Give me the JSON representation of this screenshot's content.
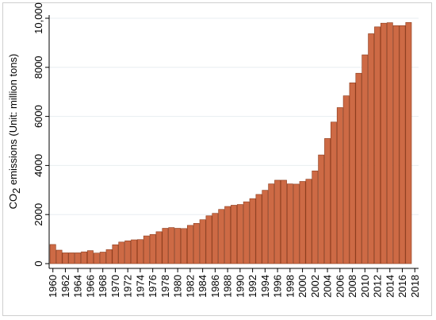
{
  "chart_data": {
    "type": "bar",
    "title": "",
    "ylabel_parts": {
      "prefix": "CO",
      "subscript": "2",
      "suffix": " emissions (Unit: million tons)"
    },
    "xlabel": "",
    "ylim": [
      0,
      10000
    ],
    "yticks": [
      0,
      2000,
      4000,
      6000,
      8000,
      10000
    ],
    "ytick_labels": [
      "0",
      "2000",
      "4000",
      "6000",
      "8000",
      "10,000"
    ],
    "xlim": [
      1959.4,
      2018.6
    ],
    "xticks": [
      1960,
      1962,
      1964,
      1966,
      1968,
      1970,
      1972,
      1974,
      1976,
      1978,
      1980,
      1982,
      1984,
      1986,
      1988,
      1990,
      1992,
      1994,
      1996,
      1998,
      2000,
      2002,
      2004,
      2006,
      2008,
      2010,
      2012,
      2014,
      2016,
      2018
    ],
    "xtick_labels": [
      "1960",
      "1962",
      "1964",
      "1966",
      "1968",
      "1970",
      "1972",
      "1974",
      "1976",
      "1978",
      "1980",
      "1982",
      "1984",
      "1986",
      "1988",
      "1990",
      "1992",
      "1994",
      "1996",
      "1998",
      "2000",
      "2002",
      "2004",
      "2006",
      "2008",
      "2010",
      "2012",
      "2014",
      "2016",
      "2018"
    ],
    "grid": true,
    "bar_color": "#cd6a45",
    "bar_edge_color": "#8b3a1a",
    "categories": [
      1960,
      1961,
      1962,
      1963,
      1964,
      1965,
      1966,
      1967,
      1968,
      1969,
      1970,
      1971,
      1972,
      1973,
      1974,
      1975,
      1976,
      1977,
      1978,
      1979,
      1980,
      1981,
      1982,
      1983,
      1984,
      1985,
      1986,
      1987,
      1988,
      1989,
      1990,
      1991,
      1992,
      1993,
      1994,
      1995,
      1996,
      1997,
      1998,
      1999,
      2000,
      2001,
      2002,
      2003,
      2004,
      2005,
      2006,
      2007,
      2008,
      2009,
      2010,
      2011,
      2012,
      2013,
      2014,
      2015,
      2016,
      2017
    ],
    "values": [
      780,
      550,
      440,
      440,
      440,
      480,
      530,
      430,
      470,
      570,
      770,
      880,
      930,
      970,
      980,
      1130,
      1190,
      1300,
      1440,
      1470,
      1440,
      1430,
      1560,
      1640,
      1790,
      1950,
      2050,
      2210,
      2330,
      2380,
      2410,
      2520,
      2650,
      2820,
      2990,
      3250,
      3400,
      3400,
      3250,
      3240,
      3350,
      3440,
      3780,
      4430,
      5100,
      5770,
      6360,
      6840,
      7370,
      7760,
      8510,
      9370,
      9650,
      9800,
      9820,
      9700,
      9700,
      9830
    ]
  }
}
